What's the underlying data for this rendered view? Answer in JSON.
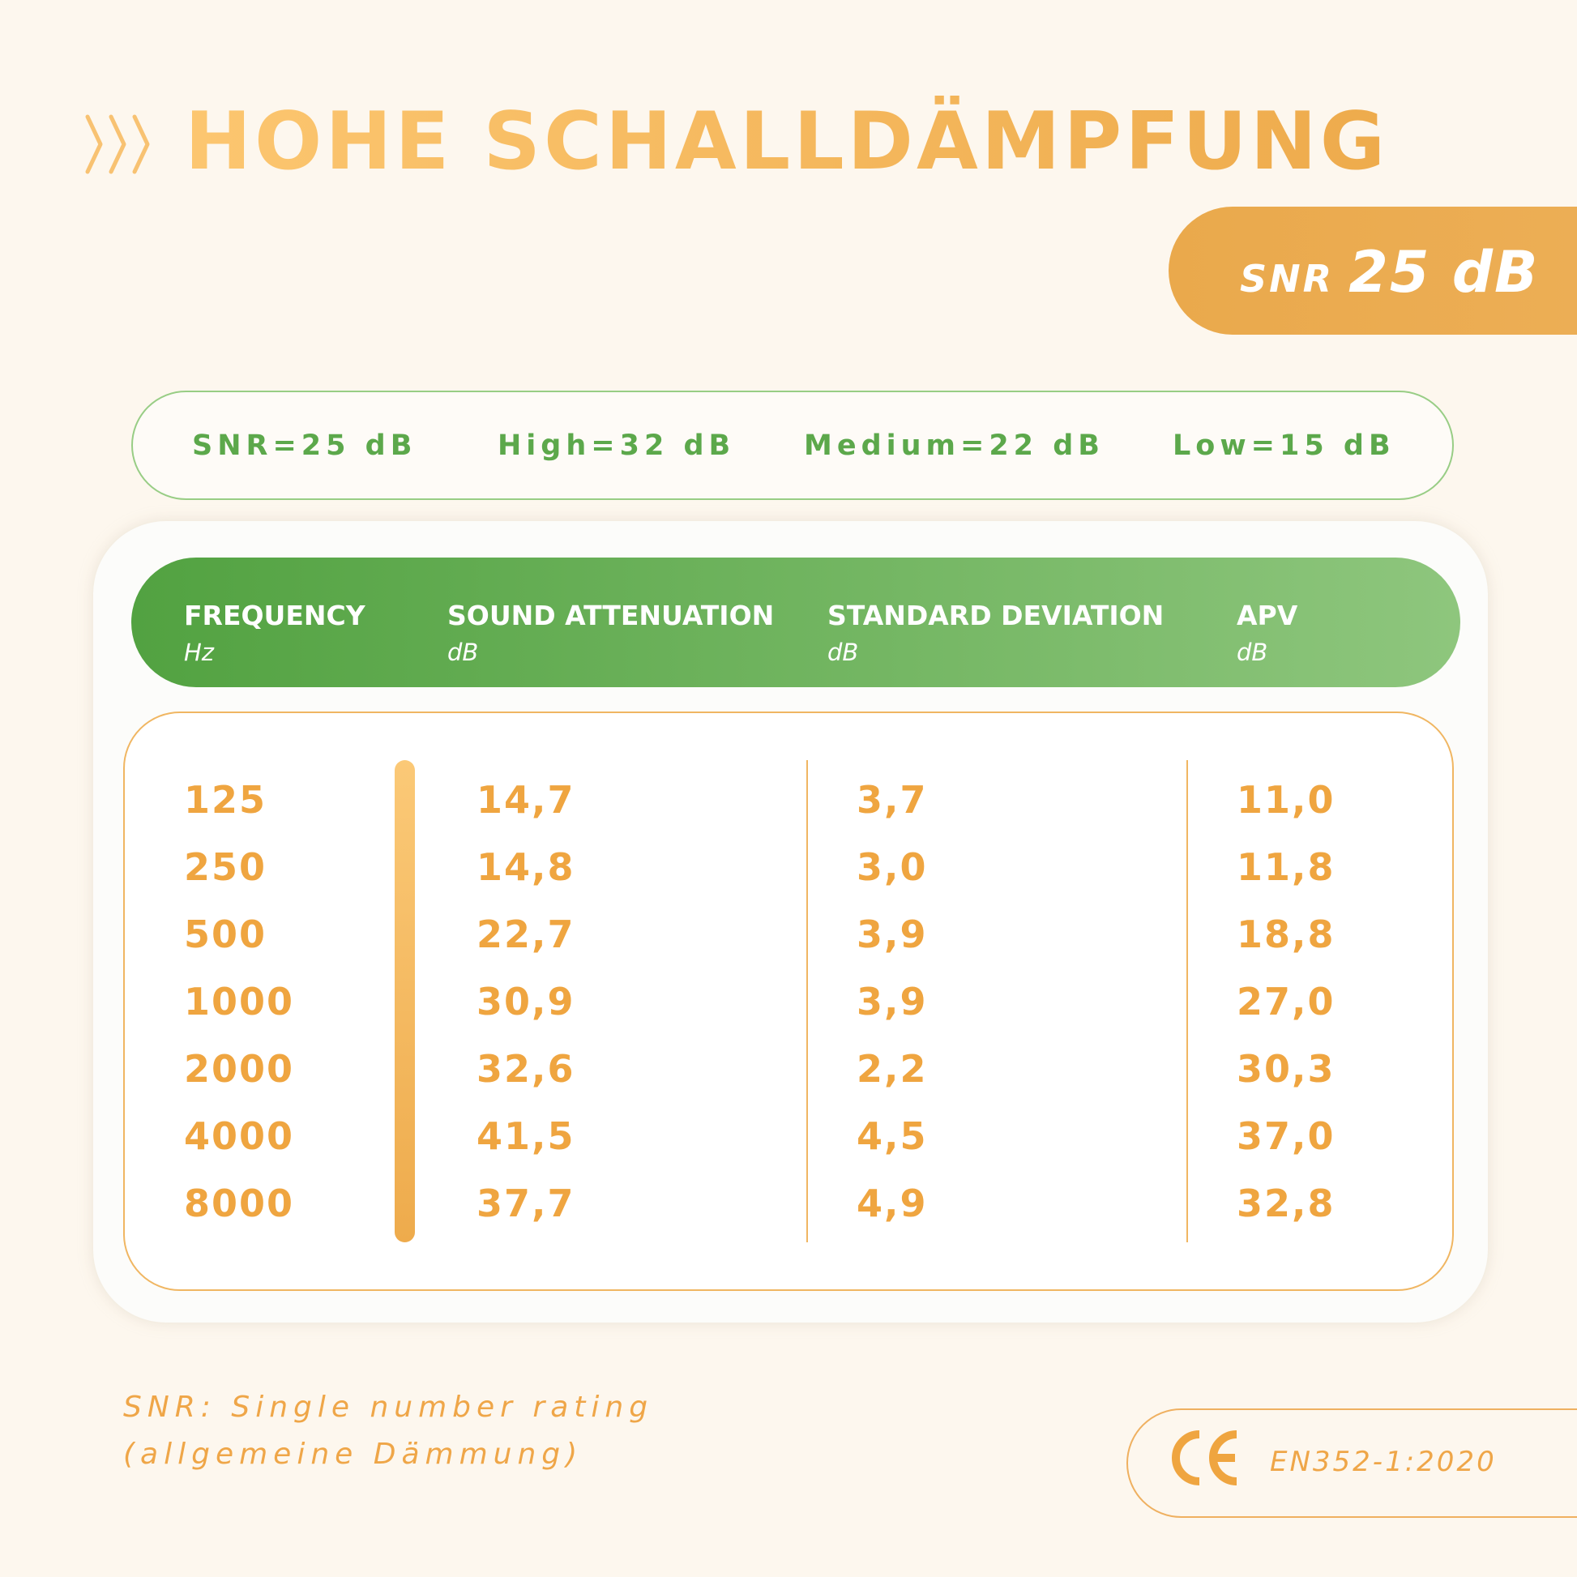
{
  "title": "HOHE SCHALLDÄMPFUNG",
  "snr_badge": {
    "label": "SNR",
    "value": "25 dB"
  },
  "ratings": [
    "SNR=25 dB",
    "High=32 dB",
    "Medium=22 dB",
    "Low=15 dB"
  ],
  "table": {
    "columns": [
      {
        "label": "FREQUENCY",
        "unit": "Hz"
      },
      {
        "label": "SOUND ATTENUATION",
        "unit": "dB"
      },
      {
        "label": "STANDARD DEVIATION",
        "unit": "dB"
      },
      {
        "label": "APV",
        "unit": "dB"
      }
    ],
    "rows": [
      [
        "125",
        "14,7",
        "3,7",
        "11,0"
      ],
      [
        "250",
        "14,8",
        "3,0",
        "11,8"
      ],
      [
        "500",
        "22,7",
        "3,9",
        "18,8"
      ],
      [
        "1000",
        "30,9",
        "3,9",
        "27,0"
      ],
      [
        "2000",
        "32,6",
        "2,2",
        "30,3"
      ],
      [
        "4000",
        "41,5",
        "4,5",
        "37,0"
      ],
      [
        "8000",
        "37,7",
        "4,9",
        "32,8"
      ]
    ]
  },
  "footnote": {
    "line1": "SNR: Single number rating",
    "line2": "(allgemeine Dämmung)"
  },
  "certification": {
    "mark": "CE",
    "standard": "EN352-1:2020"
  },
  "colors": {
    "orange": "#efa540",
    "green": "#5ca84b",
    "background": "#fdf7ee"
  }
}
